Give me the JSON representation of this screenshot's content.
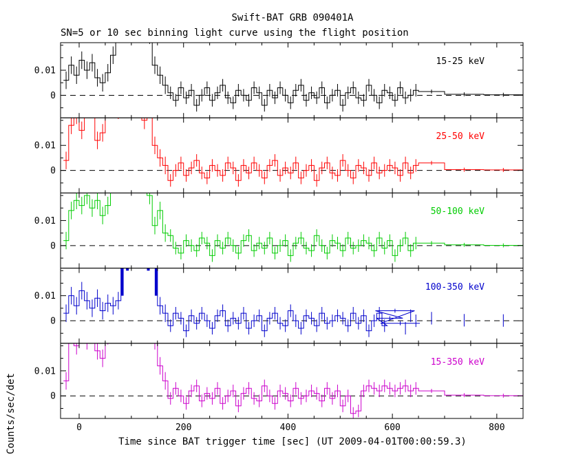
{
  "title": "Swift-BAT GRB 090401A",
  "subtitle": "SN=5 or 10 sec binning light curve using the flight position",
  "xlabel": "Time since BAT trigger time [sec] (UT 2009-04-01T00:00:59.3)",
  "ylabel": "Counts/sec/det",
  "chart_data": {
    "type": "line",
    "style": "step-histogram light curve with error bars, 5 stacked panels",
    "xlim": [
      -35.6,
      850.3
    ],
    "ylim": [
      -0.009,
      0.021
    ],
    "x_ticks": [
      0,
      200,
      400,
      600,
      800
    ],
    "x_minor_step": 50,
    "y_ticks": [
      {
        "v": 0,
        "label": "0"
      },
      {
        "v": 0.01,
        "label": "0.01"
      }
    ],
    "y_minor": [
      -0.005,
      0.005,
      0.015,
      0.02
    ],
    "zero_line_color": "#000000",
    "zero_line_dashed": true,
    "errors": {
      "burst": 0.0035,
      "tail": 0.0025,
      "late": 0.0008,
      "burst_t_max": 170,
      "wide_bin_min_width": 20
    },
    "t_centers": [
      -25,
      -15,
      -5,
      5,
      15,
      25,
      35,
      45,
      55,
      65,
      75,
      85,
      95,
      105,
      115,
      125,
      135,
      145,
      155,
      165,
      175,
      185,
      195,
      205,
      215,
      225,
      235,
      245,
      255,
      265,
      275,
      285,
      295,
      305,
      315,
      325,
      335,
      345,
      355,
      365,
      375,
      385,
      395,
      405,
      415,
      425,
      435,
      445,
      455,
      465,
      475,
      485,
      495,
      505,
      515,
      525,
      535,
      545,
      555,
      565,
      575,
      585,
      595,
      605,
      615,
      625,
      635,
      645,
      675,
      737.5,
      812.5
    ],
    "widths": [
      10,
      10,
      10,
      10,
      10,
      10,
      10,
      10,
      10,
      10,
      10,
      10,
      10,
      10,
      10,
      10,
      10,
      10,
      10,
      10,
      10,
      10,
      10,
      10,
      10,
      10,
      10,
      10,
      10,
      10,
      10,
      10,
      10,
      10,
      10,
      10,
      10,
      10,
      10,
      10,
      10,
      10,
      10,
      10,
      10,
      10,
      10,
      10,
      10,
      10,
      10,
      10,
      10,
      10,
      10,
      10,
      10,
      10,
      10,
      10,
      10,
      10,
      10,
      10,
      10,
      10,
      10,
      10,
      50,
      75,
      75
    ],
    "panels": [
      {
        "label": "15-25 keV",
        "color": "#000000",
        "y": [
          0.006,
          0.012,
          0.008,
          0.014,
          0.01,
          0.013,
          0.007,
          0.005,
          0.009,
          0.016,
          0.028,
          0.035,
          0.03,
          0.04,
          0.038,
          0.03,
          0.024,
          0.012,
          0.008,
          0.004,
          0.001,
          -0.002,
          0.003,
          -0.001,
          0.002,
          -0.004,
          0.0,
          0.003,
          -0.002,
          0.001,
          0.004,
          -0.001,
          -0.003,
          0.002,
          0.0,
          -0.002,
          0.003,
          0.001,
          -0.004,
          0.002,
          -0.001,
          0.003,
          0.0,
          -0.003,
          0.002,
          0.004,
          -0.002,
          0.001,
          -0.001,
          0.003,
          -0.003,
          0.0,
          0.002,
          -0.004,
          0.001,
          0.003,
          -0.001,
          -0.002,
          0.004,
          0.0,
          -0.003,
          0.002,
          0.001,
          -0.002,
          0.003,
          -0.001,
          0.0,
          0.002,
          0.0015,
          0.0004,
          0.0002
        ]
      },
      {
        "label": "25-50 keV",
        "color": "#ff0000",
        "y": [
          0.004,
          0.018,
          0.022,
          0.016,
          0.025,
          0.03,
          0.012,
          0.015,
          0.028,
          0.035,
          0.024,
          0.04,
          0.045,
          0.038,
          0.03,
          0.02,
          0.025,
          0.01,
          0.005,
          0.002,
          -0.004,
          0.0,
          0.003,
          -0.002,
          0.001,
          0.004,
          -0.001,
          -0.003,
          0.002,
          0.0,
          -0.002,
          0.003,
          0.001,
          -0.004,
          0.002,
          -0.001,
          0.003,
          0.0,
          -0.003,
          0.002,
          0.004,
          -0.002,
          0.001,
          -0.001,
          0.003,
          -0.003,
          0.0,
          0.002,
          -0.004,
          0.001,
          0.003,
          -0.001,
          -0.002,
          0.004,
          0.0,
          -0.003,
          0.002,
          0.001,
          -0.002,
          0.003,
          -0.001,
          0.0,
          0.002,
          0.001,
          -0.002,
          0.003,
          -0.001,
          0.002,
          0.003,
          0.0003,
          0.0002
        ]
      },
      {
        "label": "50-100 keV",
        "color": "#00cc00",
        "y": [
          0.002,
          0.014,
          0.018,
          0.016,
          0.02,
          0.015,
          0.018,
          0.012,
          0.016,
          0.03,
          0.038,
          0.045,
          0.04,
          0.035,
          0.028,
          0.032,
          0.02,
          0.008,
          0.014,
          0.005,
          0.004,
          -0.001,
          -0.003,
          0.002,
          0.0,
          -0.002,
          0.003,
          0.001,
          -0.004,
          0.002,
          -0.001,
          0.003,
          0.0,
          -0.003,
          0.002,
          0.004,
          -0.002,
          0.001,
          -0.001,
          0.003,
          -0.003,
          0.0,
          0.002,
          -0.004,
          0.001,
          0.003,
          -0.001,
          -0.002,
          0.004,
          0.0,
          -0.003,
          0.002,
          0.001,
          -0.002,
          0.003,
          -0.001,
          0.0,
          0.002,
          0.001,
          -0.002,
          0.003,
          -0.001,
          0.002,
          -0.004,
          0.0,
          0.003,
          -0.002,
          0.001,
          0.001,
          0.0003,
          0.0001
        ]
      },
      {
        "label": "100-350 keV",
        "color": "#0000cc",
        "t": [
          -25,
          -15,
          -5,
          5,
          15,
          25,
          35,
          45,
          55,
          65,
          75,
          82.5,
          87.5,
          92.5,
          97.5,
          102.5,
          107.5,
          112.5,
          117.5,
          122.5,
          127.5,
          132.5,
          137.5,
          142.5,
          147.5,
          155,
          165,
          175,
          185,
          195,
          205,
          215,
          225,
          235,
          245,
          255,
          265,
          275,
          285,
          295,
          305,
          315,
          325,
          335,
          345,
          355,
          365,
          375,
          385,
          395,
          405,
          415,
          425,
          435,
          445,
          455,
          465,
          475,
          485,
          495,
          505,
          515,
          525,
          535,
          545,
          555,
          565,
          575,
          585,
          595,
          605,
          615,
          625,
          635,
          645,
          675,
          737.5,
          812.5
        ],
        "w": [
          10,
          10,
          10,
          10,
          10,
          10,
          10,
          10,
          10,
          10,
          10,
          5,
          5,
          5,
          5,
          5,
          5,
          5,
          5,
          5,
          5,
          5,
          5,
          5,
          5,
          10,
          10,
          10,
          10,
          10,
          10,
          10,
          10,
          10,
          10,
          10,
          10,
          10,
          10,
          10,
          10,
          10,
          10,
          10,
          10,
          10,
          10,
          10,
          10,
          10,
          10,
          10,
          10,
          10,
          10,
          10,
          10,
          10,
          10,
          10,
          10,
          10,
          10,
          10,
          10,
          10,
          10,
          10,
          10,
          50,
          75,
          75
        ],
        "core": {
          "range": [
            80,
            150
          ],
          "err": 0.05
        },
        "y": [
          0.003,
          0.01,
          0.006,
          0.012,
          0.008,
          0.005,
          0.009,
          0.004,
          0.007,
          0.006,
          0.008,
          0.06,
          0.08,
          0.07,
          0.09,
          0.085,
          0.075,
          0.095,
          0.088,
          0.08,
          0.092,
          0.07,
          0.085,
          0.078,
          0.06,
          0.006,
          0.003,
          -0.002,
          0.003,
          0.001,
          -0.004,
          0.002,
          -0.001,
          0.003,
          0.0,
          -0.003,
          0.002,
          0.004,
          -0.002,
          0.001,
          -0.001,
          0.003,
          -0.003,
          0.0,
          0.002,
          -0.004,
          0.001,
          0.003,
          -0.001,
          -0.002,
          0.004,
          0.0,
          -0.003,
          0.002,
          0.001,
          -0.002,
          0.003,
          -0.001,
          0.0,
          0.002,
          0.001,
          -0.002,
          0.003,
          -0.001,
          0.002,
          -0.004,
          0.0,
          0.003,
          -0.002,
          0.001,
          0.004,
          -0.001,
          -0.003,
          0.002,
          0.0,
          0.001,
          0.0002,
          0.0001
        ]
      },
      {
        "label": "15-350 keV",
        "color": "#cc00cc",
        "y": [
          0.006,
          0.025,
          0.02,
          0.028,
          0.022,
          0.03,
          0.018,
          0.015,
          0.024,
          0.035,
          0.04,
          0.045,
          0.042,
          0.05,
          0.044,
          0.036,
          0.03,
          0.022,
          0.012,
          0.006,
          -0.001,
          0.003,
          0.0,
          -0.003,
          0.002,
          0.004,
          -0.002,
          0.001,
          -0.001,
          0.003,
          -0.003,
          0.0,
          0.002,
          -0.004,
          0.001,
          0.003,
          -0.001,
          -0.002,
          0.004,
          0.0,
          -0.003,
          0.002,
          0.001,
          -0.002,
          0.003,
          -0.001,
          0.0,
          0.002,
          0.001,
          -0.002,
          0.003,
          -0.001,
          0.002,
          -0.004,
          0.0,
          -0.007,
          -0.006,
          0.002,
          0.004,
          0.003,
          0.002,
          0.004,
          0.003,
          0.002,
          0.003,
          0.004,
          0.002,
          0.003,
          0.002,
          0.0003,
          0.0001
        ]
      }
    ]
  }
}
